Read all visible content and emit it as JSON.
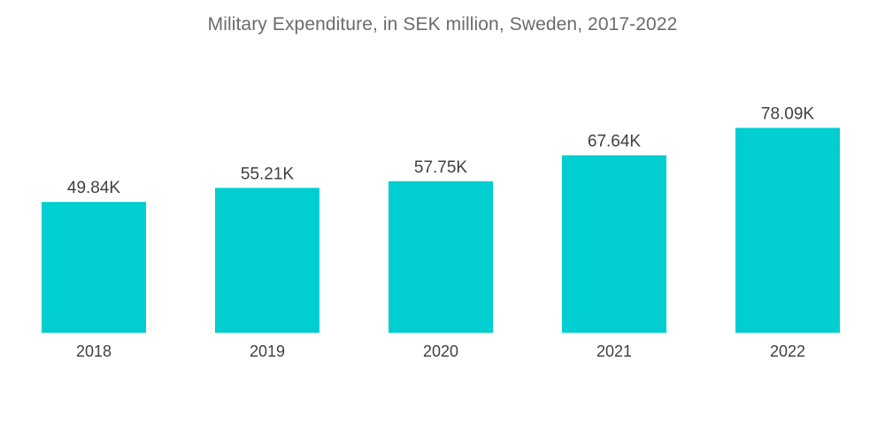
{
  "chart_data": {
    "type": "bar",
    "title": "Military Expenditure, in SEK million, Sweden, 2017-2022",
    "xlabel": "",
    "ylabel": "",
    "categories": [
      "2018",
      "2019",
      "2020",
      "2021",
      "2022"
    ],
    "values": [
      49840,
      55210,
      57750,
      67640,
      78090
    ],
    "value_labels": [
      "49.84K",
      "55.21K",
      "57.75K",
      "67.64K",
      "78.09K"
    ],
    "ylim": [
      0,
      80000
    ],
    "grid": false,
    "legend": "none",
    "bar_color": "#00ced1"
  }
}
